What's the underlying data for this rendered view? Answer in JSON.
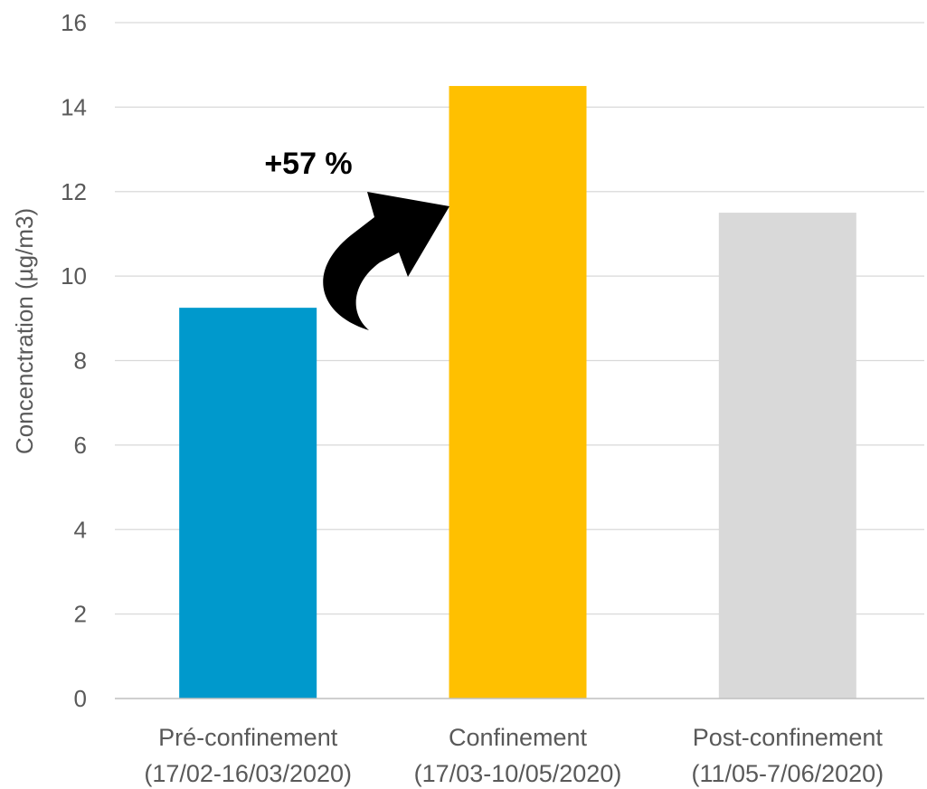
{
  "chart_data": {
    "type": "bar",
    "title": "",
    "ylabel": "Concenctration (µg/m3)",
    "xlabel": "",
    "ylim": [
      0,
      16
    ],
    "yticks": [
      0,
      2,
      4,
      6,
      8,
      10,
      12,
      14,
      16
    ],
    "grid": true,
    "categories": [
      [
        "Pré-confinement",
        "(17/02-16/03/2020)"
      ],
      [
        "Confinement",
        "(17/03-10/05/2020)"
      ],
      [
        "Post-confinement",
        "(11/05-7/06/2020)"
      ]
    ],
    "values": [
      9.25,
      14.5,
      11.5
    ],
    "colors": [
      "#0099cc",
      "#ffc000",
      "#d9d9d9"
    ],
    "annotation": {
      "text": "+57 %",
      "icon": "curved-arrow-icon",
      "color": "#000000"
    }
  }
}
